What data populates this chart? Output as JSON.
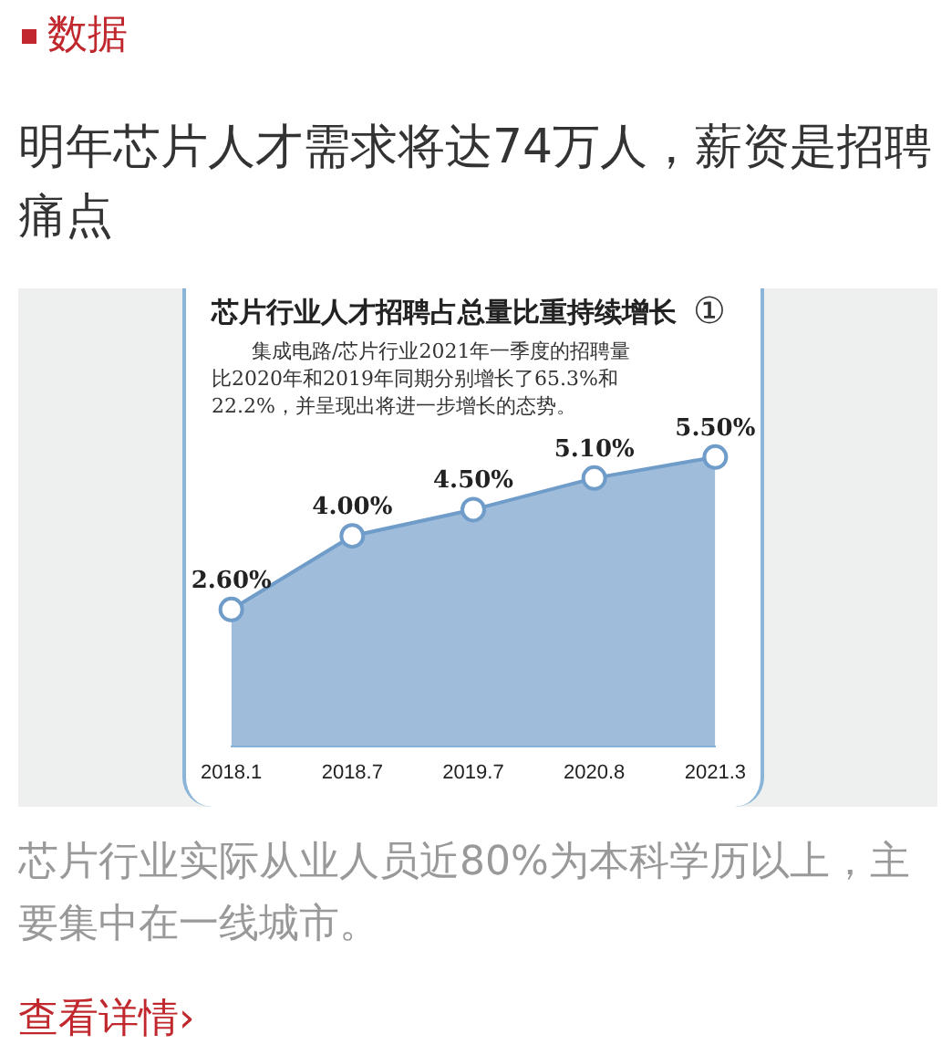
{
  "chart_data": {
    "type": "area",
    "title": "芯片行业人才招聘占总量比重持续增长",
    "subtitle": "集成电路/芯片行业2021年一季度的招聘量比2020年和2019年同期分别增长了65.3%和22.2%，并呈现出将进一步增长的态势。",
    "categories": [
      "2018.1",
      "2018.7",
      "2019.7",
      "2020.8",
      "2021.3"
    ],
    "series": [
      {
        "color": "#6f9cc9",
        "values": [
          2.6,
          4.0,
          4.5,
          5.1,
          5.5
        ],
        "value_labels": [
          "2.60%",
          "4.00%",
          "4.50%",
          "5.10%",
          "5.50%"
        ]
      }
    ],
    "marker": "circle",
    "legend": false,
    "grid": false,
    "annotations": [
      "数据",
      "明年芯片人才需求将达74万人，薪资是招聘痛点",
      "芯片行业实际从业人员近80%为本科学历以上，主要集中在一线城市。",
      "查看详情›",
      "①"
    ]
  }
}
